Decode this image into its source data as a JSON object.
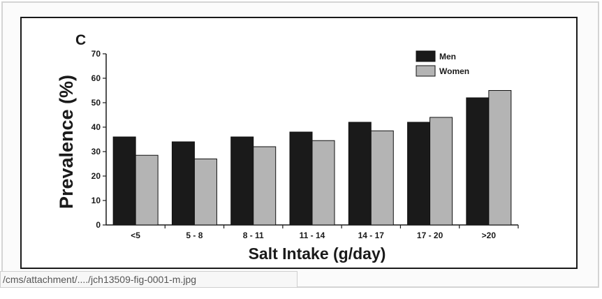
{
  "panel_letter": "C",
  "status_bar": {
    "url": "/cms/attachment/..../jch13509-fig-0001-m.jpg"
  },
  "colors": {
    "men": "#1a1a1a",
    "women": "#b4b4b4",
    "axis": "#1a1a1a",
    "text": "#1a1a1a"
  },
  "chart_data": {
    "type": "bar",
    "title": "",
    "xlabel": "Salt Intake (g/day)",
    "ylabel": "Prevalence (%)",
    "ylim": [
      0,
      70
    ],
    "yticks": [
      0,
      10,
      20,
      30,
      40,
      50,
      60,
      70
    ],
    "grid": false,
    "legend_position": "top-right",
    "categories": [
      "<5",
      "5 - 8",
      "8 - 11",
      "11 - 14",
      "14 - 17",
      "17 - 20",
      ">20"
    ],
    "series": [
      {
        "name": "Men",
        "color": "#1a1a1a",
        "values": [
          36,
          34,
          36,
          38,
          42,
          42,
          52
        ]
      },
      {
        "name": "Women",
        "color": "#b4b4b4",
        "values": [
          28.5,
          27,
          32,
          34.5,
          38.5,
          44,
          55
        ]
      }
    ]
  }
}
